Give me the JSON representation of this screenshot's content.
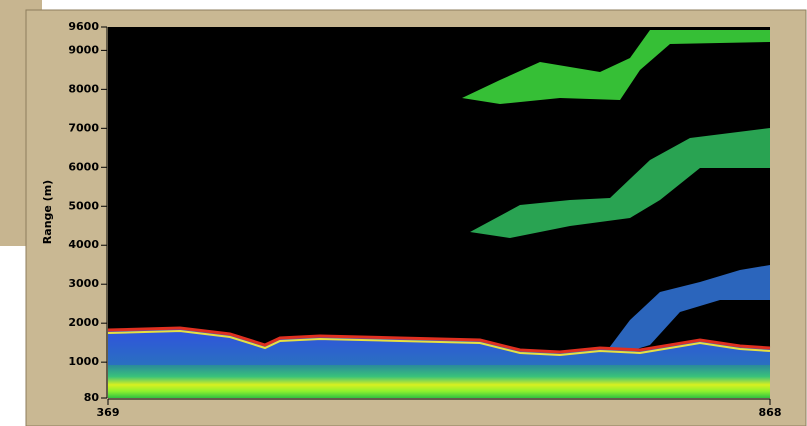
{
  "chart_data": {
    "type": "heatmap",
    "y_label": "Range (m)",
    "xlim": [
      369,
      868
    ],
    "xticks": [
      369,
      868
    ],
    "ylim": [
      80,
      9600
    ],
    "yticks": [
      80,
      1000,
      2000,
      3000,
      4000,
      5000,
      6000,
      7000,
      8000,
      9000,
      9600
    ]
  }
}
